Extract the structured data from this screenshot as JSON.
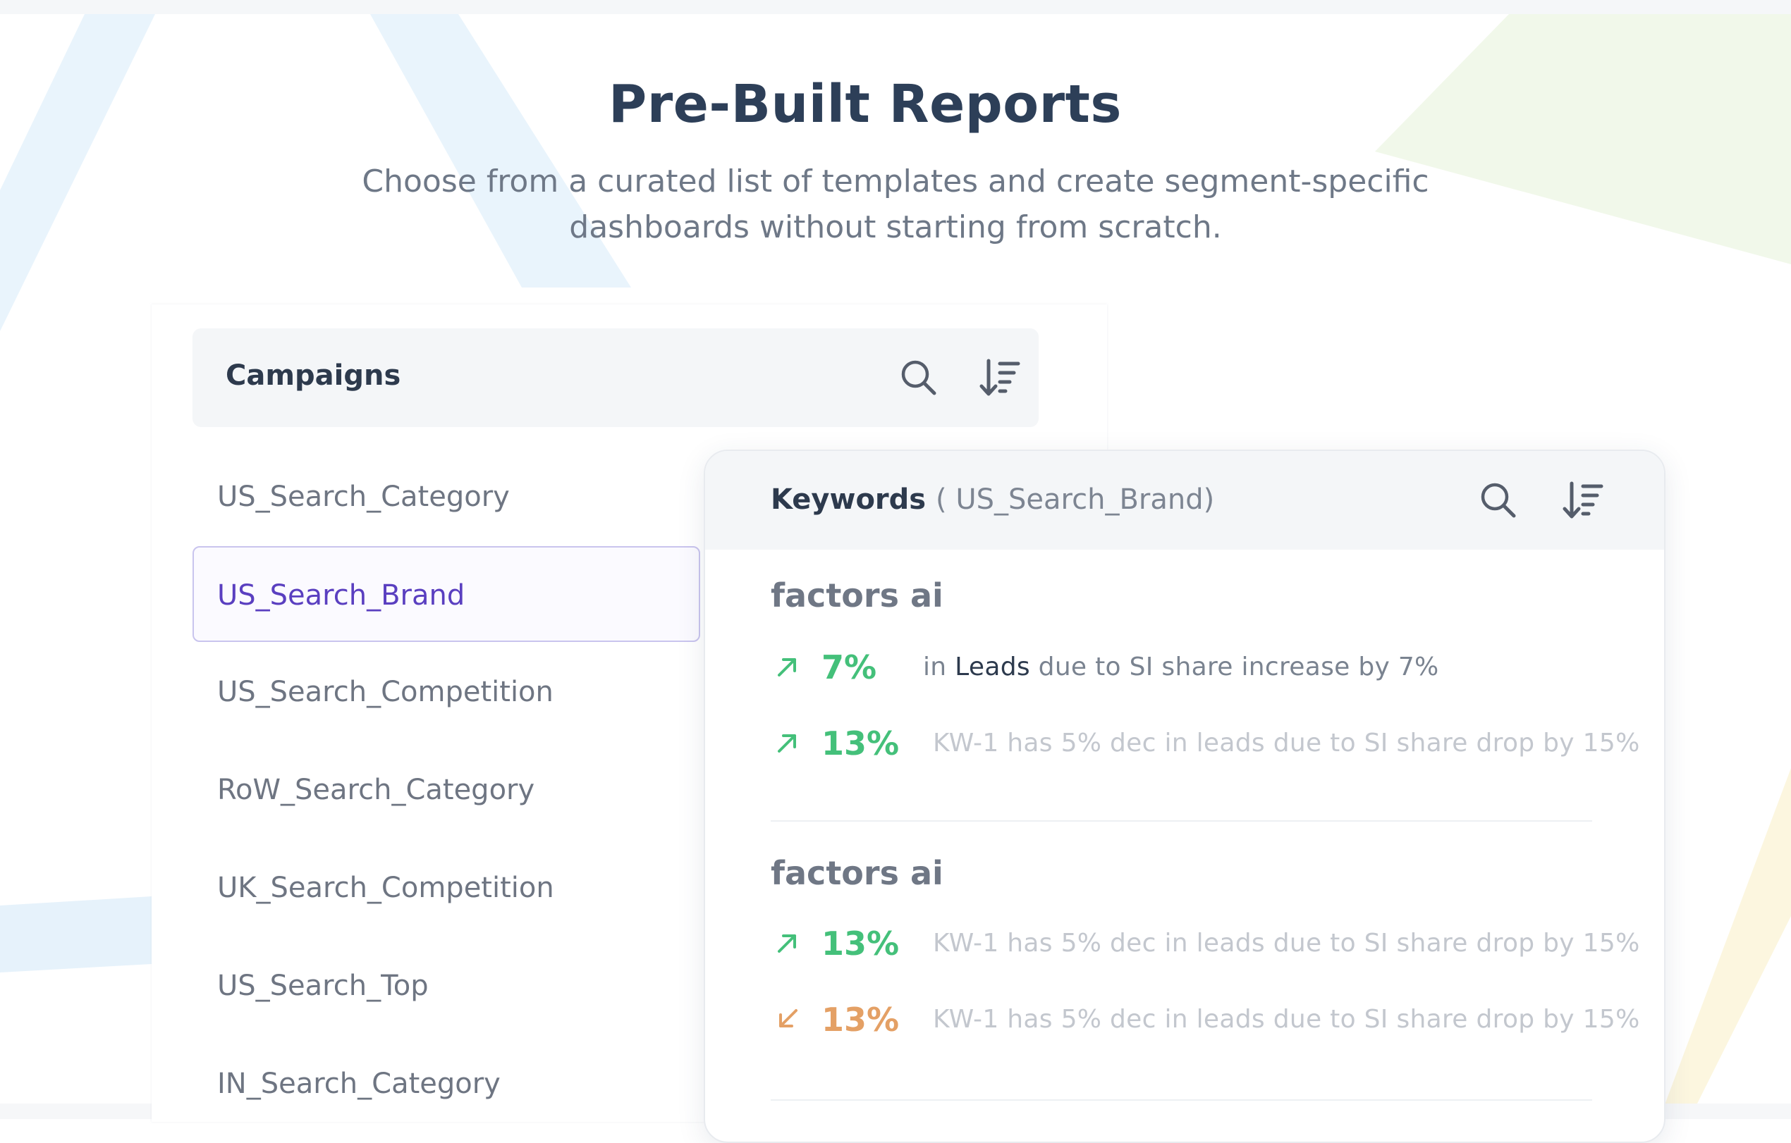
{
  "hero": {
    "title": "Pre-Built Reports",
    "subtitle": "Choose from a curated list of templates and create segment-specific dashboards without starting from scratch."
  },
  "campaigns": {
    "title": "Campaigns",
    "search_icon": "search-icon",
    "sort_icon": "sort-descending-icon",
    "items": [
      {
        "label": "US_Search_Category"
      },
      {
        "label": "US_Search_Brand",
        "selected": true
      },
      {
        "label": "US_Search_Competition"
      },
      {
        "label": "RoW_Search_Category"
      },
      {
        "label": "UK_Search_Competition"
      },
      {
        "label": "US_Search_Top"
      },
      {
        "label": "IN_Search_Category"
      }
    ]
  },
  "keywords": {
    "title": "Keywords",
    "subtitle": "( US_Search_Brand)",
    "search_icon": "search-icon",
    "sort_icon": "sort-descending-icon",
    "groups": [
      {
        "title": "factors ai",
        "rows": [
          {
            "direction": "up",
            "icon": "arrow-up-right-icon",
            "value": "7%",
            "desc_prefix": "in ",
            "desc_highlight": "Leads",
            "desc_suffix": " due to SI share increase by 7%"
          },
          {
            "direction": "up",
            "icon": "arrow-up-right-icon",
            "value": "13%",
            "desc": "KW-1 has 5% dec in leads due to SI share drop by 15%"
          }
        ]
      },
      {
        "title": "factors ai",
        "rows": [
          {
            "direction": "up",
            "icon": "arrow-up-right-icon",
            "value": "13%",
            "desc": "KW-1 has 5% dec in leads due to SI share drop by 15%"
          },
          {
            "direction": "down",
            "icon": "arrow-down-left-icon",
            "value": "13%",
            "desc": "KW-1 has 5% dec in leads due to SI share drop by 15%"
          }
        ]
      }
    ]
  },
  "colors": {
    "accent_purple": "#5a3fc0",
    "up_green": "#44c07a",
    "down_orange": "#e4a065",
    "title_navy": "#2d3f58"
  }
}
